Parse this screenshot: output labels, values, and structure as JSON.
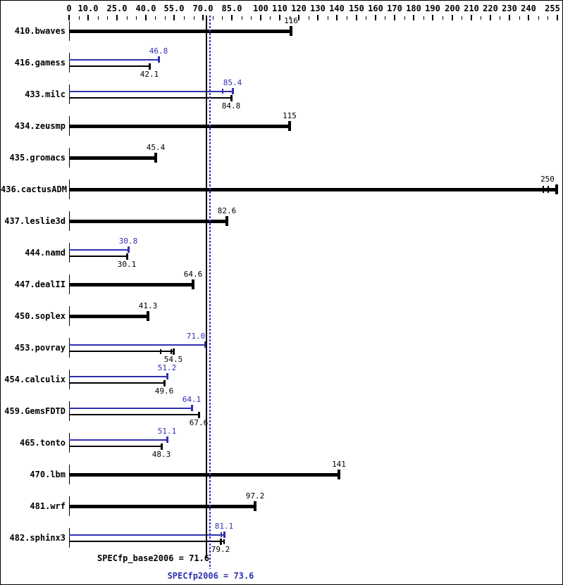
{
  "chart_data": {
    "type": "bar",
    "orientation": "horizontal",
    "description": "SPEC CPU2006 floating point rate results per benchmark (base = black, peak = blue)",
    "axis": {
      "min": 0,
      "max": 255,
      "minor_tick_step": 5,
      "major_ticks": [
        {
          "value": 0,
          "label": "0"
        },
        {
          "value": 10,
          "label": "10.0"
        },
        {
          "value": 25,
          "label": "25.0"
        },
        {
          "value": 40,
          "label": "40.0"
        },
        {
          "value": 55,
          "label": "55.0"
        },
        {
          "value": 70,
          "label": "70.0"
        },
        {
          "value": 85,
          "label": "85.0"
        },
        {
          "value": 100,
          "label": "100"
        },
        {
          "value": 110,
          "label": "110"
        },
        {
          "value": 120,
          "label": "120"
        },
        {
          "value": 130,
          "label": "130"
        },
        {
          "value": 140,
          "label": "140"
        },
        {
          "value": 150,
          "label": "150"
        },
        {
          "value": 160,
          "label": "160"
        },
        {
          "value": 170,
          "label": "170"
        },
        {
          "value": 180,
          "label": "180"
        },
        {
          "value": 190,
          "label": "190"
        },
        {
          "value": 200,
          "label": "200"
        },
        {
          "value": 210,
          "label": "210"
        },
        {
          "value": 220,
          "label": "220"
        },
        {
          "value": 230,
          "label": "230"
        },
        {
          "value": 240,
          "label": "240"
        },
        {
          "value": 255,
          "label": "255"
        }
      ]
    },
    "colors": {
      "base": "#000000",
      "peak": "#3030b0",
      "peak_reference_line": "#3333cc",
      "background": "#ffffff"
    },
    "benchmarks": [
      {
        "name": "410.bwaves",
        "base": {
          "value": 116,
          "label": "116"
        },
        "peak": null
      },
      {
        "name": "416.gamess",
        "base": {
          "value": 42.1,
          "label": "42.1"
        },
        "peak": {
          "value": 46.8,
          "label": "46.8"
        }
      },
      {
        "name": "433.milc",
        "base": {
          "value": 84.8,
          "label": "84.8"
        },
        "peak": {
          "value": 85.4,
          "label": "85.4",
          "marks": [
            80.3
          ]
        }
      },
      {
        "name": "434.zeusmp",
        "base": {
          "value": 115,
          "label": "115"
        },
        "peak": null
      },
      {
        "name": "435.gromacs",
        "base": {
          "value": 45.4,
          "label": "45.4"
        },
        "peak": null
      },
      {
        "name": "436.cactusADM",
        "base": {
          "value": 250,
          "label": "250",
          "bar_to": 254.8,
          "marks": [
            247.6,
            250.2
          ]
        },
        "peak": null
      },
      {
        "name": "437.leslie3d",
        "base": {
          "value": 82.6,
          "label": "82.6"
        },
        "peak": null
      },
      {
        "name": "444.namd",
        "base": {
          "value": 30.1,
          "label": "30.1"
        },
        "peak": {
          "value": 30.8,
          "label": "30.8"
        }
      },
      {
        "name": "447.dealII",
        "base": {
          "value": 64.6,
          "label": "64.6"
        },
        "peak": null
      },
      {
        "name": "450.soplex",
        "base": {
          "value": 41.3,
          "label": "41.3"
        },
        "peak": null
      },
      {
        "name": "453.povray",
        "base": {
          "value": 54.5,
          "label": "54.5",
          "marks": [
            47.9,
            53.4
          ]
        },
        "peak": {
          "value": 71.0,
          "label": "71.0",
          "label_dx": -13
        }
      },
      {
        "name": "454.calculix",
        "base": {
          "value": 49.6,
          "label": "49.6"
        },
        "peak": {
          "value": 51.2,
          "label": "51.2"
        }
      },
      {
        "name": "459.GemsFDTD",
        "base": {
          "value": 67.6,
          "label": "67.6"
        },
        "peak": {
          "value": 64.1,
          "label": "64.1"
        }
      },
      {
        "name": "465.tonto",
        "base": {
          "value": 48.3,
          "label": "48.3"
        },
        "peak": {
          "value": 51.1,
          "label": "51.1"
        }
      },
      {
        "name": "470.lbm",
        "base": {
          "value": 141,
          "label": "141"
        },
        "peak": null
      },
      {
        "name": "481.wrf",
        "base": {
          "value": 97.2,
          "label": "97.2"
        },
        "peak": null
      },
      {
        "name": "482.sphinx3",
        "base": {
          "value": 79.2,
          "label": "79.2",
          "bar_to": 80.8,
          "marks": [
            80.8
          ]
        },
        "peak": {
          "value": 81.1,
          "label": "81.1",
          "marks": [
            79.5
          ]
        }
      }
    ],
    "reference_lines": [
      {
        "series": "base",
        "value": 71.6,
        "style": "solid",
        "color": "#000000"
      },
      {
        "series": "peak",
        "value": 73.6,
        "style": "dotted",
        "color": "#3333cc"
      }
    ],
    "base_summary": {
      "label": "SPECfp_base2006 = 71.6",
      "value": 71.6
    },
    "peak_summary": {
      "label": "SPECfp2006 = 73.6",
      "value": 73.6
    }
  }
}
